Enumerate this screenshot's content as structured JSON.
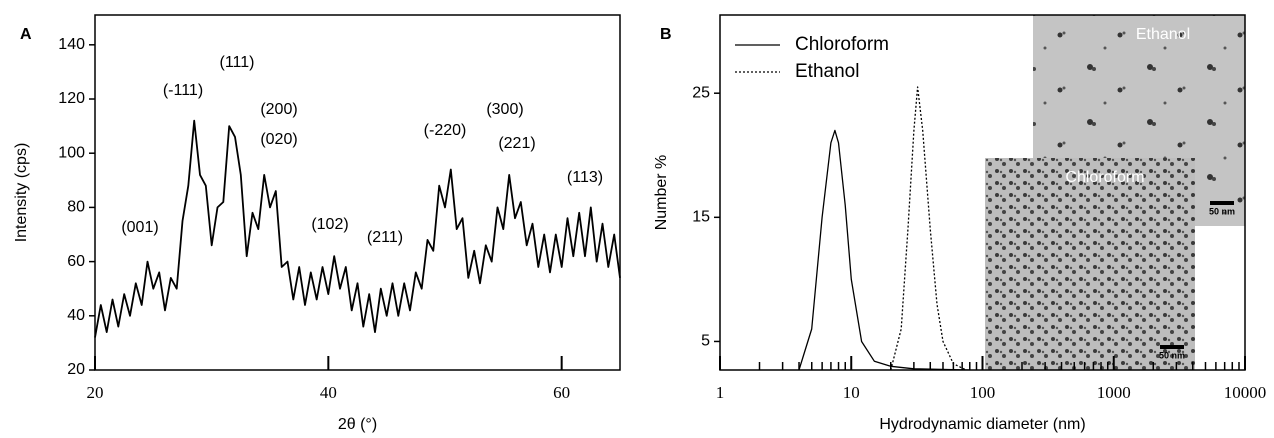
{
  "chart_data": [
    {
      "type": "line",
      "panel": "A",
      "xlabel": "2θ (°)",
      "ylabel": "Intensity (cps)",
      "x": [
        20,
        20.5,
        21,
        21.5,
        22,
        22.5,
        23,
        23.5,
        24,
        24.5,
        25,
        25.5,
        26,
        26.5,
        27,
        27.5,
        28,
        28.5,
        29,
        29.5,
        30,
        30.5,
        31,
        31.5,
        32,
        32.5,
        33,
        33.5,
        34,
        34.5,
        35,
        35.5,
        36,
        36.5,
        37,
        37.5,
        38,
        38.5,
        39,
        39.5,
        40,
        40.5,
        41,
        41.5,
        42,
        42.5,
        43,
        43.5,
        44,
        44.5,
        45,
        45.5,
        46,
        46.5,
        47,
        47.5,
        48,
        48.5,
        49,
        49.5,
        50,
        50.5,
        51,
        51.5,
        52,
        52.5,
        53,
        53.5,
        54,
        54.5,
        55,
        55.5,
        56,
        56.5,
        57,
        57.5,
        58,
        58.5,
        59,
        59.5,
        60,
        60.5,
        61,
        61.5,
        62,
        62.5,
        63,
        63.5,
        64,
        64.5,
        65
      ],
      "series": [
        {
          "color": "#000000",
          "values": [
            32,
            44,
            34,
            46,
            36,
            48,
            40,
            52,
            44,
            60,
            50,
            56,
            42,
            54,
            50,
            75,
            88,
            112,
            92,
            88,
            66,
            80,
            82,
            110,
            106,
            92,
            62,
            78,
            72,
            92,
            80,
            86,
            58,
            60,
            46,
            58,
            44,
            56,
            46,
            58,
            48,
            62,
            50,
            58,
            42,
            52,
            36,
            48,
            34,
            50,
            40,
            52,
            40,
            52,
            42,
            56,
            50,
            68,
            64,
            88,
            80,
            94,
            72,
            76,
            54,
            64,
            52,
            66,
            60,
            80,
            72,
            92,
            76,
            82,
            66,
            74,
            58,
            70,
            56,
            70,
            58,
            76,
            62,
            78,
            62,
            80,
            60,
            74,
            58,
            70,
            54
          ]
        }
      ],
      "xlim": [
        20,
        65
      ],
      "xticks": [
        20,
        40,
        60
      ],
      "ylim": [
        20,
        151
      ],
      "yticks": [
        20,
        40,
        60,
        80,
        100,
        120,
        140
      ],
      "annotations": [
        "(001)",
        "(-111)",
        "(111)",
        "(200)",
        "(020)",
        "(102)",
        "(211)",
        "(-220)",
        "(300)",
        "(221)",
        "(113)"
      ]
    },
    {
      "type": "line",
      "panel": "B",
      "xlabel": "Hydrodynamic diameter (nm)",
      "ylabel": "Number %",
      "xscale": "log",
      "xlim": [
        1,
        10000
      ],
      "xticks": [
        1,
        10,
        100,
        1000,
        10000
      ],
      "xminorticks": [
        2,
        3,
        4,
        5,
        6,
        7,
        8,
        9,
        20,
        30,
        40,
        50,
        60,
        70,
        80,
        90,
        200,
        300,
        400,
        500,
        600,
        700,
        800,
        900,
        2000,
        3000,
        4000,
        5000,
        6000,
        7000,
        8000,
        9000
      ],
      "ylim": [
        2.7,
        31.3
      ],
      "yticks": [
        5,
        15,
        25
      ],
      "series": [
        {
          "name": "Chloroform",
          "color": "#000000",
          "dash": "solid",
          "x": [
            4,
            5,
            6,
            7,
            7.5,
            8,
            9,
            10,
            12,
            15,
            20,
            30,
            80
          ],
          "values": [
            2.7,
            6,
            15,
            21,
            22,
            21,
            16,
            10,
            5,
            3.4,
            3,
            2.8,
            2.7
          ]
        },
        {
          "name": "Ethanol",
          "color": "#000000",
          "dash": "dotted",
          "x": [
            20,
            24,
            27,
            30,
            32,
            35,
            40,
            45,
            50,
            60,
            75
          ],
          "values": [
            2.7,
            6,
            14,
            22,
            25.5,
            22,
            14,
            8,
            5,
            3.2,
            2.7
          ]
        }
      ],
      "insets": [
        {
          "label": "Ethanol",
          "scale_bar": "50 nm"
        },
        {
          "label": "Chloroform",
          "scale_bar": "50 nm"
        }
      ]
    }
  ]
}
